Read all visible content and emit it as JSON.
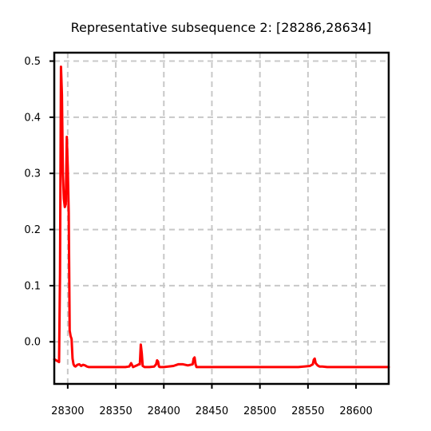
{
  "chart_data": {
    "type": "line",
    "title": "Representative subsequence 2: [28286,28634]",
    "xlabel": "",
    "ylabel": "",
    "xlim": [
      28286,
      28634
    ],
    "ylim": [
      -0.075,
      0.515
    ],
    "grid": true,
    "grid_style": "dashed",
    "xticks": [
      28300,
      28350,
      28400,
      28450,
      28500,
      28550,
      28600
    ],
    "yticks": [
      0.0,
      0.1,
      0.2,
      0.3,
      0.4,
      0.5
    ],
    "ytick_labels": [
      "0.0",
      "0.1",
      "0.2",
      "0.3",
      "0.4",
      "0.5"
    ],
    "series": [
      {
        "color": "#ff0000",
        "x": [
          28286,
          28291,
          28292,
          28293,
          28294,
          28295,
          28296,
          28297,
          28298,
          28299,
          28300,
          28301,
          28302,
          28303,
          28304,
          28305,
          28306,
          28307,
          28308,
          28310,
          28312,
          28314,
          28316,
          28318,
          28320,
          28322,
          28325,
          28330,
          28340,
          28350,
          28360,
          28364,
          28366,
          28368,
          28372,
          28374,
          28375,
          28376,
          28377,
          28378,
          28380,
          28385,
          28390,
          28392,
          28393,
          28394,
          28395,
          28396,
          28400,
          28410,
          28415,
          28420,
          28425,
          28430,
          28431,
          28432,
          28433,
          28434,
          28440,
          28460,
          28500,
          28540,
          28552,
          28555,
          28556,
          28557,
          28558,
          28560,
          28562,
          28565,
          28570,
          28600,
          28634
        ],
        "y": [
          -0.031,
          -0.036,
          0.12,
          0.49,
          0.44,
          0.3,
          0.255,
          0.24,
          0.245,
          0.365,
          0.31,
          0.23,
          0.02,
          0.01,
          0.005,
          -0.03,
          -0.04,
          -0.043,
          -0.044,
          -0.041,
          -0.04,
          -0.043,
          -0.041,
          -0.042,
          -0.044,
          -0.045,
          -0.045,
          -0.045,
          -0.045,
          -0.045,
          -0.045,
          -0.044,
          -0.038,
          -0.045,
          -0.042,
          -0.04,
          -0.04,
          -0.005,
          -0.02,
          -0.043,
          -0.045,
          -0.045,
          -0.044,
          -0.04,
          -0.033,
          -0.035,
          -0.044,
          -0.045,
          -0.045,
          -0.043,
          -0.04,
          -0.04,
          -0.042,
          -0.04,
          -0.03,
          -0.028,
          -0.04,
          -0.045,
          -0.045,
          -0.045,
          -0.045,
          -0.045,
          -0.043,
          -0.04,
          -0.032,
          -0.03,
          -0.038,
          -0.042,
          -0.044,
          -0.044,
          -0.045,
          -0.045,
          -0.045
        ]
      }
    ]
  }
}
